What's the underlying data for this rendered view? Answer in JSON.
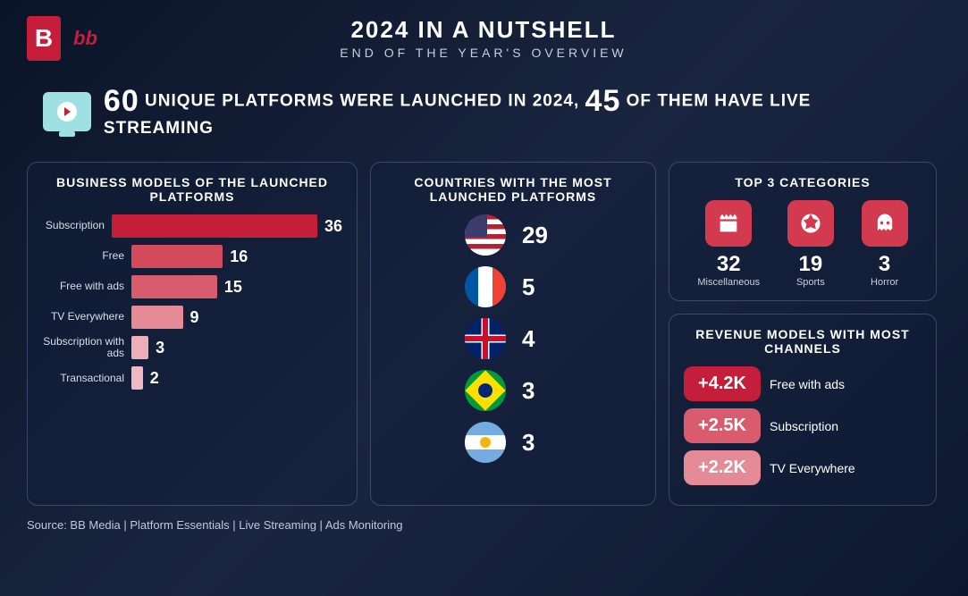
{
  "brand": {
    "logo_letter": "B",
    "logo_text": "bb"
  },
  "header": {
    "title": "2024 IN A NUTSHELL",
    "subtitle": "END OF THE YEAR'S OVERVIEW"
  },
  "banner": {
    "count1": "60",
    "text1": "UNIQUE PLATFORMS WERE LAUNCHED IN 2024,",
    "count2": "45",
    "text2": "OF THEM HAVE LIVE STREAMING"
  },
  "business_models": {
    "title": "BUSINESS MODELS OF THE LAUNCHED PLATFORMS",
    "max": 36,
    "bars": [
      {
        "label": "Subscription",
        "value": 36,
        "color": "#c41e3a"
      },
      {
        "label": "Free",
        "value": 16,
        "color": "#d34a5d"
      },
      {
        "label": "Free with ads",
        "value": 15,
        "color": "#d85c6e"
      },
      {
        "label": "TV Everywhere",
        "value": 9,
        "color": "#e58a97"
      },
      {
        "label": "Subscription with ads",
        "value": 3,
        "color": "#edaeb7"
      },
      {
        "label": "Transactional",
        "value": 2,
        "color": "#f0b9c1"
      }
    ]
  },
  "countries": {
    "title": "COUNTRIES WITH THE  MOST LAUNCHED PLATFORMS",
    "items": [
      {
        "flag": "usa",
        "value": 29
      },
      {
        "flag": "fra",
        "value": 5
      },
      {
        "flag": "uk",
        "value": 4
      },
      {
        "flag": "bra",
        "value": 3
      },
      {
        "flag": "arg",
        "value": 3
      }
    ]
  },
  "top_categories": {
    "title": "TOP 3 CATEGORIES",
    "items": [
      {
        "icon": "clapper",
        "value": 32,
        "label": "Miscellaneous",
        "bg": "#d33a4f"
      },
      {
        "icon": "ball",
        "value": 19,
        "label": "Sports",
        "bg": "#d33a4f"
      },
      {
        "icon": "ghost",
        "value": 3,
        "label": "Horror",
        "bg": "#d33a4f"
      }
    ]
  },
  "revenue": {
    "title": "REVENUE MODELS WITH MOST CHANNELS",
    "items": [
      {
        "value": "+4.2K",
        "label": "Free with ads",
        "bg": "#c41e3a"
      },
      {
        "value": "+2.5K",
        "label": "Subscription",
        "bg": "#d85c6e"
      },
      {
        "value": "+2.2K",
        "label": "TV Everywhere",
        "bg": "#e58a97"
      }
    ]
  },
  "source": "Source: BB Media | Platform Essentials | Live Streaming | Ads Monitoring"
}
